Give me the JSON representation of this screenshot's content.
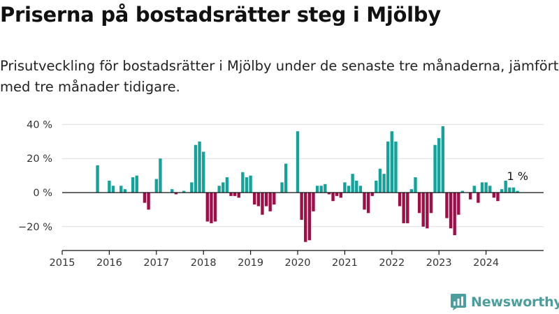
{
  "title": "Priserna på bostadsrätter steg i Mjölby",
  "subtitle": "Prisutveckling för bostadsrätter i Mjölby under de senaste tre månaderna, jämfört med tre månader tidigare.",
  "logo_text": "Newsworthy",
  "colors": {
    "positive": "#12a39a",
    "negative": "#a00d47",
    "axis": "#111111",
    "grid": "#dddddd"
  },
  "chart_data": {
    "type": "bar",
    "x_unit": "month",
    "start_month": "2015-10",
    "values": [
      16,
      0,
      0,
      7,
      4,
      0,
      4,
      2,
      0,
      9,
      10,
      0,
      -6,
      -10,
      0,
      8,
      20,
      0,
      0,
      2,
      -1,
      0,
      1,
      0,
      6,
      28,
      30,
      24,
      -17,
      -18,
      -17,
      4,
      6,
      9,
      -2,
      -2,
      -3,
      12,
      9,
      10,
      -7,
      -8,
      -13,
      -8,
      -11,
      -7,
      0,
      6,
      17,
      0,
      0,
      36,
      -16,
      -29,
      -28,
      -11,
      4,
      4,
      5,
      -1,
      -5,
      -2,
      -3,
      6,
      4,
      11,
      7,
      4,
      -10,
      -12,
      -2,
      7,
      14,
      11,
      30,
      36,
      30,
      -8,
      -18,
      -18,
      2,
      9,
      -12,
      -20,
      -21,
      -12,
      28,
      32,
      39,
      -15,
      -21,
      -25,
      -13,
      1,
      0,
      -4,
      4,
      -6,
      6,
      6,
      4,
      -3,
      -5,
      2,
      7,
      3,
      3,
      1
    ],
    "x_ticks": [
      "2015",
      "2016",
      "2017",
      "2018",
      "2019",
      "2020",
      "2021",
      "2022",
      "2023",
      "2024"
    ],
    "y_ticks": [
      "−20 %",
      "0 %",
      "20 %",
      "40 %"
    ],
    "ylim": [
      -33,
      43
    ],
    "annotation": "1 %",
    "grid": true
  }
}
